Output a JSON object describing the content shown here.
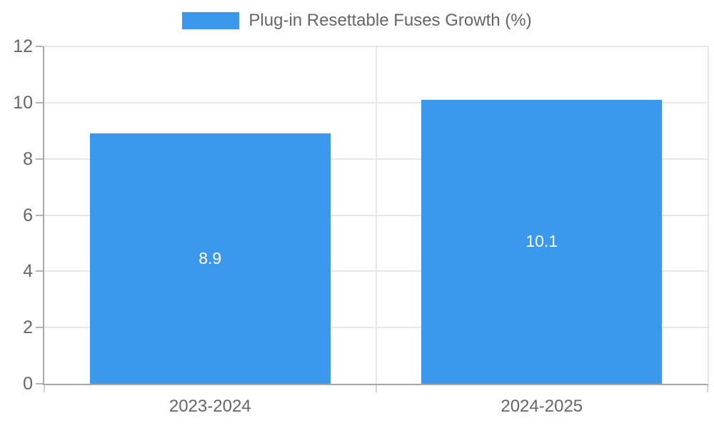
{
  "legend": {
    "label": "Plug-in Resettable Fuses Growth (%)"
  },
  "chart_data": {
    "type": "bar",
    "title": "Plug-in Resettable Fuses Growth (%)",
    "categories": [
      "2023-2024",
      "2024-2025"
    ],
    "values": [
      8.9,
      10.1
    ],
    "value_labels": [
      "8.9",
      "10.1"
    ],
    "series": [
      {
        "name": "Plug-in Resettable Fuses Growth (%)",
        "values": [
          8.9,
          10.1
        ]
      }
    ],
    "xlabel": "",
    "ylabel": "",
    "ylim": [
      0,
      12
    ],
    "yticks": [
      0,
      2,
      4,
      6,
      8,
      10,
      12
    ],
    "grid": true,
    "legend_position": "top",
    "bar_color": "#3b99ed",
    "bar_label_color": "#ffffff",
    "axis_text_color": "#666666",
    "axis_line_color": "#a8a8a8",
    "gridline_color": "#e8e8e8"
  }
}
